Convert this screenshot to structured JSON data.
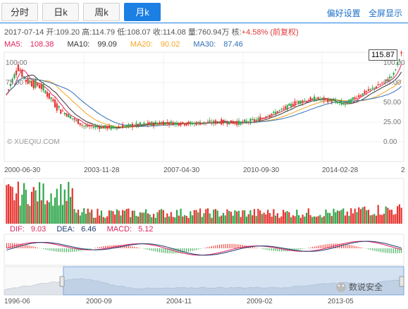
{
  "tabs": [
    {
      "label": "分时",
      "active": false
    },
    {
      "label": "日k",
      "active": false
    },
    {
      "label": "周k",
      "active": false
    },
    {
      "label": "月k",
      "active": true
    }
  ],
  "links": {
    "prefs": "偏好设置",
    "fullscreen": "全屏显示"
  },
  "info": {
    "date": "2017-07-14",
    "open_label": "开:",
    "open": "109.20",
    "high_label": "高:",
    "high": "114.79",
    "low_label": "低:",
    "low": "108.07",
    "close_label": "收:",
    "close": "114.08",
    "volume_label": "量:",
    "volume": "760.94万",
    "change_label": "核:",
    "change": "+4.58%",
    "adjust": "(前复权)"
  },
  "ma": [
    {
      "label": "MA5:",
      "value": "108.38",
      "color": "#e0245e"
    },
    {
      "label": "MA10:",
      "value": "99.09",
      "color": "#333333"
    },
    {
      "label": "MA20:",
      "value": "90.02",
      "color": "#f5a623"
    },
    {
      "label": "MA30:",
      "value": "87.46",
      "color": "#2f6fb5"
    }
  ],
  "current_price": "115.87",
  "watermark": "© XUEQIU.COM",
  "macd": [
    {
      "label": "DIF:",
      "value": "9.03",
      "color": "#e0245e"
    },
    {
      "label": "DEA:",
      "value": "6.46",
      "color": "#1f3b70"
    },
    {
      "label": "MACD:",
      "value": "5.12",
      "color": "#e0245e"
    }
  ],
  "overview_watermark": "数说安全",
  "chart_data": {
    "type": "candlestick",
    "y_left_ticks": [
      "100.00",
      "75.00",
      "50.00",
      "25.00",
      "0.00"
    ],
    "y_right_ticks": [
      "100.00",
      "75.00",
      "50.00",
      "25.00",
      "0.00"
    ],
    "ylim": [
      0,
      125
    ],
    "x_ticks": [
      "2000-06-30",
      "2003-11-28",
      "2007-04-30",
      "2010-09-30",
      "2014-02-28"
    ],
    "x_tick_last": "2",
    "overview_ticks": [
      "1996-06",
      "2000-09",
      "2004-11",
      "2009-02",
      "2013-05"
    ]
  }
}
